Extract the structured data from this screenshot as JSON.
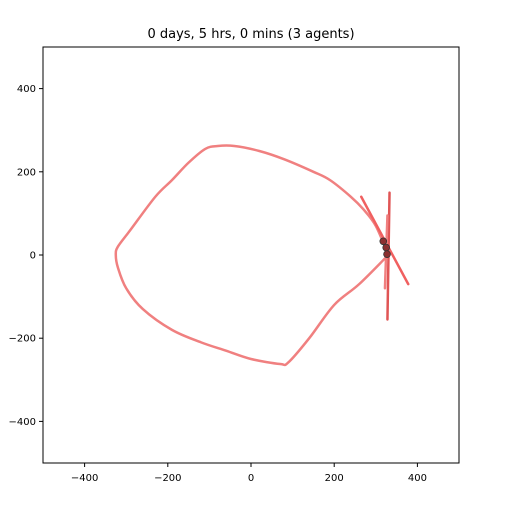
{
  "chart_data": {
    "type": "line",
    "title": "0 days, 5 hrs, 0 mins (3 agents)",
    "xlabel": "",
    "ylabel": "",
    "xlim": [
      -500,
      500
    ],
    "ylim": [
      -500,
      500
    ],
    "xticks": [
      -400,
      -200,
      0,
      200,
      400
    ],
    "yticks": [
      -400,
      -200,
      0,
      200,
      400
    ],
    "grid": false,
    "series": [
      {
        "color": "#f08080",
        "x": [
          330,
          300,
          270,
          240,
          190,
          150,
          80,
          20,
          -40,
          -80,
          -110,
          -150,
          -190,
          -230,
          -290,
          -320,
          -325,
          -320,
          -300,
          -260,
          -190,
          -120,
          -60,
          0,
          70,
          90,
          140,
          200,
          260,
          330
        ],
        "y": [
          0,
          70,
          110,
          140,
          180,
          200,
          230,
          250,
          262,
          262,
          255,
          222,
          180,
          140,
          60,
          20,
          0,
          -30,
          -80,
          -130,
          -180,
          -210,
          -230,
          -250,
          -262,
          -258,
          -200,
          -120,
          -70,
          0
        ]
      },
      {
        "color": "#e05555",
        "x": [
          333,
          328
        ],
        "y": [
          150,
          -155
        ]
      },
      {
        "color": "#f06060",
        "x": [
          265,
          378
        ],
        "y": [
          140,
          -70
        ]
      },
      {
        "color": "#f08080",
        "x": [
          328,
          322
        ],
        "y": [
          95,
          -80
        ]
      }
    ],
    "agents": [
      {
        "x": 318,
        "y": 33,
        "color": "#8b2f2f"
      },
      {
        "x": 325,
        "y": 18,
        "color": "#8b2f2f"
      },
      {
        "x": 327,
        "y": 2,
        "color": "#8b2f2f"
      }
    ]
  }
}
